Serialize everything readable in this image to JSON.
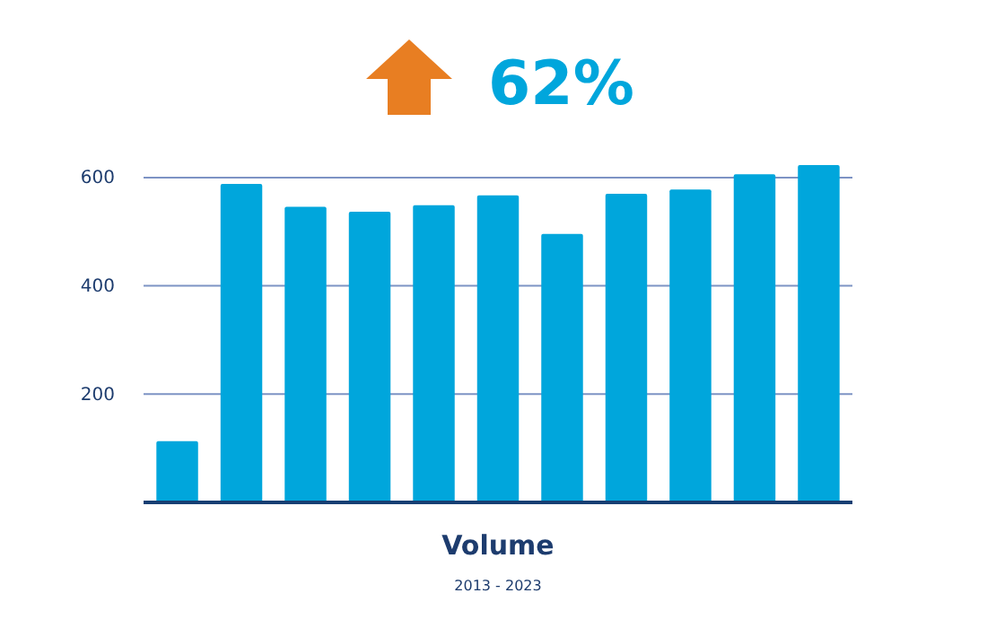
{
  "chart_data": {
    "type": "bar",
    "title": "62%",
    "xlabel": "Volume",
    "annotations": [
      "2013 - 2023"
    ],
    "categories": [
      null,
      null,
      null,
      null,
      null,
      null,
      null,
      null,
      null,
      null,
      null
    ],
    "values": [
      113,
      588,
      546,
      537,
      549,
      567,
      496,
      570,
      578,
      606,
      623
    ],
    "color": "#00a6dc",
    "ylim": [
      0,
      623
    ],
    "yticks": [
      200,
      400,
      600
    ],
    "grid": "y"
  }
}
